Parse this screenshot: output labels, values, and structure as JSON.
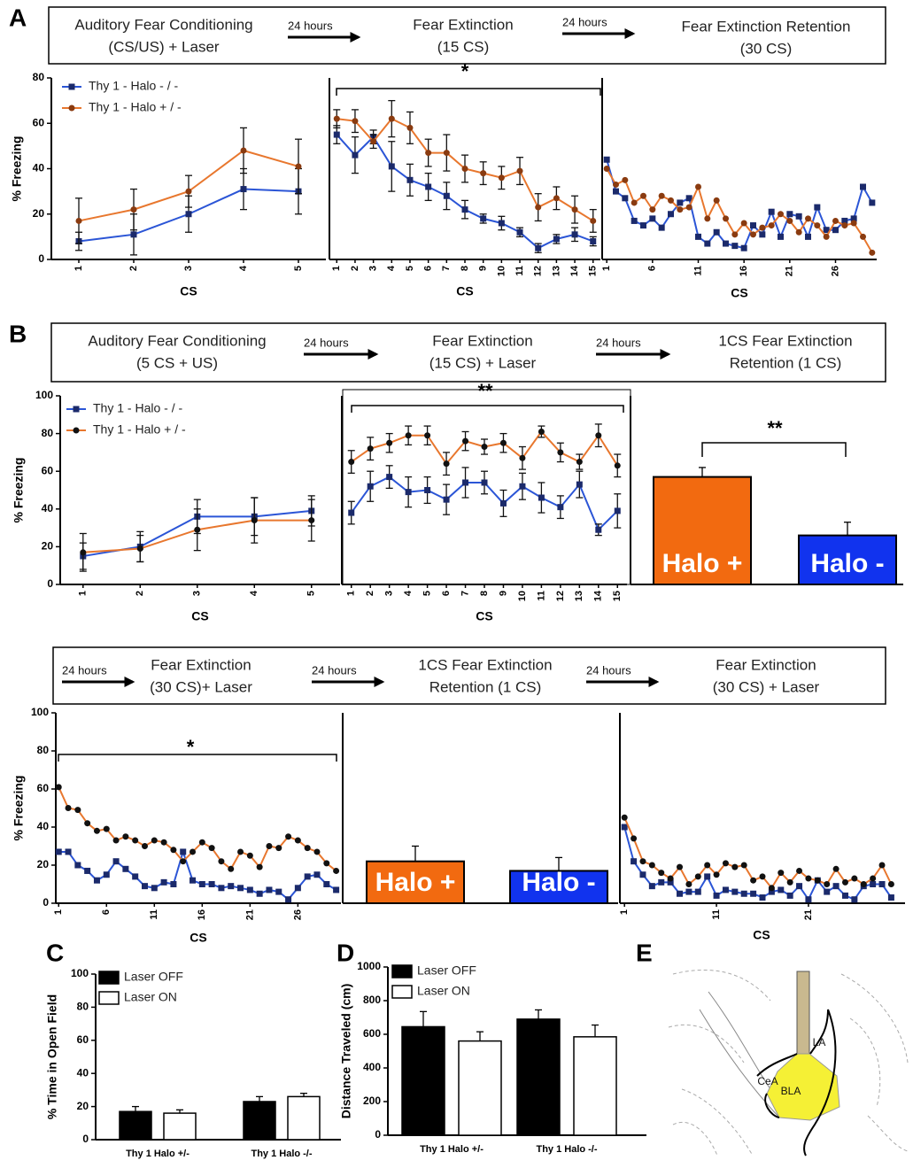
{
  "panel_letters": [
    "A",
    "B",
    "C",
    "D",
    "E"
  ],
  "headers": [
    {
      "stages": [
        [
          "Auditory Fear Conditioning",
          "(CS/US) + Laser"
        ],
        [
          "Fear Extinction",
          "(15 CS)"
        ],
        [
          "Fear Extinction Retention",
          "(30 CS)"
        ]
      ],
      "arrows": [
        "24 hours",
        "24 hours"
      ]
    },
    {
      "stages": [
        [
          "Auditory Fear Conditioning",
          "(5 CS + US)"
        ],
        [
          "Fear Extinction",
          "(15 CS) + Laser"
        ],
        [
          "1CS Fear Extinction",
          "Retention (1 CS)"
        ]
      ],
      "arrows": [
        "24 hours",
        "24 hours"
      ]
    },
    {
      "stages": [
        [
          "Fear Extinction",
          "(30 CS)+ Laser"
        ],
        [
          "1CS Fear  Extinction",
          "Retention (1 CS)"
        ],
        [
          "Fear Extinction",
          "(30 CS) + Laser"
        ]
      ],
      "arrows": [
        "24 hours",
        "24 hours",
        "24 hours"
      ]
    }
  ],
  "diagram": {
    "labels": [
      "LA",
      "CeA",
      "BLA"
    ]
  },
  "chart_data": [
    {
      "type": "line",
      "xlabel": "CS",
      "ylabel": "% Freezing",
      "x": [
        1,
        2,
        3,
        4,
        5
      ],
      "xlim": [
        0.5,
        5.5
      ],
      "xticks": [
        1,
        2,
        3,
        4,
        5
      ],
      "ylim": [
        0,
        80
      ],
      "yticks": [
        0,
        20,
        40,
        60,
        80
      ],
      "series": [
        {
          "name": "Thy 1 - Halo - / -",
          "color": "#2b55d6",
          "marker": "square",
          "marker_color": "#1b2a6b",
          "values": [
            8,
            11,
            20,
            31,
            30
          ],
          "errors": [
            4,
            9,
            8,
            9,
            10
          ]
        },
        {
          "name": "Thy 1 - Halo + / -",
          "color": "#e8772e",
          "marker": "circle",
          "marker_color": "#8a3b10",
          "values": [
            17,
            22,
            30,
            48,
            41
          ],
          "errors": [
            10,
            9,
            7,
            10,
            12
          ]
        }
      ]
    },
    {
      "type": "line",
      "xlabel": "CS",
      "annotation": "*",
      "x": [
        1,
        2,
        3,
        4,
        5,
        6,
        7,
        8,
        9,
        10,
        11,
        12,
        13,
        14,
        15
      ],
      "xlim": [
        0.6,
        15.4
      ],
      "xticks": [
        1,
        2,
        3,
        4,
        5,
        6,
        7,
        8,
        9,
        10,
        11,
        12,
        13,
        14,
        15
      ],
      "ylim": [
        0,
        80
      ],
      "series": [
        {
          "color": "#2b55d6",
          "marker": "square",
          "marker_color": "#1b2a6b",
          "values": [
            55,
            46,
            54,
            41,
            35,
            32,
            28,
            22,
            18,
            16,
            12,
            5,
            9,
            11,
            8
          ],
          "errors": [
            4,
            8,
            3,
            11,
            7,
            6,
            6,
            4,
            2,
            3,
            2,
            2,
            2,
            3,
            2
          ]
        },
        {
          "color": "#e8772e",
          "marker": "circle",
          "marker_color": "#8a3b10",
          "values": [
            62,
            61,
            52,
            62,
            58,
            47,
            47,
            40,
            38,
            36,
            39,
            23,
            27,
            22,
            17
          ],
          "errors": [
            4,
            5,
            3,
            8,
            7,
            6,
            8,
            6,
            5,
            5,
            6,
            6,
            5,
            6,
            5
          ]
        }
      ]
    },
    {
      "type": "line",
      "xlabel": "CS",
      "x": [
        1,
        2,
        3,
        4,
        5,
        6,
        7,
        8,
        9,
        10,
        11,
        12,
        13,
        14,
        15,
        16,
        17,
        18,
        19,
        20,
        21,
        22,
        23,
        24,
        25,
        26,
        27,
        28,
        29,
        30
      ],
      "xlim": [
        0.5,
        30.5
      ],
      "xticks": [
        1,
        6,
        11,
        16,
        21,
        26
      ],
      "ylim": [
        0,
        80
      ],
      "series": [
        {
          "color": "#2b55d6",
          "marker": "square",
          "marker_color": "#1b2a6b",
          "values": [
            44,
            30,
            27,
            17,
            15,
            18,
            14,
            20,
            25,
            27,
            10,
            7,
            12,
            7,
            6,
            5,
            15,
            11,
            21,
            10,
            20,
            19,
            10,
            23,
            13,
            13,
            17,
            18,
            32,
            25
          ]
        },
        {
          "color": "#e8772e",
          "marker": "circle",
          "marker_color": "#8a3b10",
          "values": [
            40,
            33,
            35,
            25,
            28,
            22,
            28,
            26,
            22,
            23,
            32,
            18,
            26,
            18,
            11,
            16,
            11,
            14,
            15,
            20,
            17,
            12,
            18,
            15,
            10,
            17,
            15,
            16,
            10,
            3
          ]
        }
      ]
    },
    {
      "type": "line",
      "xlabel": "CS",
      "ylabel": "% Freezing",
      "x": [
        1,
        2,
        3,
        4,
        5
      ],
      "xlim": [
        0.6,
        5.5
      ],
      "xticks": [
        1,
        2,
        3,
        4,
        5
      ],
      "ylim": [
        0,
        100
      ],
      "yticks": [
        0,
        20,
        40,
        60,
        80,
        100
      ],
      "series": [
        {
          "name": "Thy 1 - Halo - / -",
          "color": "#2b55d6",
          "marker": "square",
          "marker_color": "#1b2a6b",
          "values": [
            15,
            20,
            36,
            36,
            39
          ],
          "errors": [
            7,
            8,
            9,
            10,
            8
          ]
        },
        {
          "name": "Thy 1 - Halo + / -",
          "color": "#e8772e",
          "marker": "circle",
          "marker_color": "#111111",
          "values": [
            17,
            19,
            29,
            34,
            34
          ],
          "errors": [
            10,
            7,
            11,
            12,
            11
          ]
        }
      ]
    },
    {
      "type": "line",
      "xlabel": "CS",
      "annotation": "**",
      "x": [
        1,
        2,
        3,
        4,
        5,
        6,
        7,
        8,
        9,
        10,
        11,
        12,
        13,
        14,
        15
      ],
      "xlim": [
        0.5,
        15.5
      ],
      "xticks": [
        1,
        2,
        3,
        4,
        5,
        6,
        7,
        8,
        9,
        10,
        11,
        12,
        13,
        14,
        15
      ],
      "ylim": [
        0,
        100
      ],
      "series": [
        {
          "color": "#2b55d6",
          "marker": "square",
          "marker_color": "#1b2a6b",
          "values": [
            38,
            52,
            57,
            49,
            50,
            45,
            54,
            54,
            43,
            52,
            46,
            41,
            53,
            29,
            39
          ],
          "errors": [
            6,
            8,
            6,
            8,
            7,
            8,
            8,
            6,
            7,
            7,
            8,
            6,
            7,
            3,
            9
          ]
        },
        {
          "color": "#e8772e",
          "marker": "circle",
          "marker_color": "#111111",
          "values": [
            65,
            72,
            75,
            79,
            79,
            64,
            76,
            73,
            75,
            67,
            81,
            70,
            65,
            79,
            63
          ],
          "errors": [
            6,
            6,
            5,
            5,
            5,
            6,
            5,
            4,
            5,
            6,
            3,
            5,
            4,
            6,
            6
          ]
        }
      ]
    },
    {
      "type": "bar",
      "annotation": "**",
      "categories": [
        "Halo +",
        "Halo -"
      ],
      "values": [
        57,
        26
      ],
      "errors": [
        5,
        7
      ],
      "colors": [
        "#f26a10",
        "#1133ee"
      ],
      "ylim": [
        0,
        100
      ]
    },
    {
      "type": "line",
      "xlabel": "CS",
      "ylabel": "% Freezing",
      "annotation": "*",
      "x": [
        1,
        2,
        3,
        4,
        5,
        6,
        7,
        8,
        9,
        10,
        11,
        12,
        13,
        14,
        15,
        16,
        17,
        18,
        19,
        20,
        21,
        22,
        23,
        24,
        25,
        26,
        27,
        28,
        29,
        30
      ],
      "xlim": [
        0.7,
        30.5
      ],
      "xticks": [
        1,
        6,
        11,
        16,
        21,
        26
      ],
      "ylim": [
        0,
        100
      ],
      "yticks": [
        0,
        20,
        40,
        60,
        80,
        100
      ],
      "series": [
        {
          "color": "#2b55d6",
          "marker": "square",
          "marker_color": "#1b2a6b",
          "values": [
            27,
            27,
            20,
            17,
            12,
            15,
            22,
            18,
            14,
            9,
            8,
            11,
            10,
            27,
            12,
            10,
            10,
            8,
            9,
            8,
            7,
            5,
            7,
            6,
            2,
            8,
            14,
            15,
            10,
            7
          ]
        },
        {
          "color": "#e8772e",
          "marker": "circle",
          "marker_color": "#111111",
          "values": [
            61,
            50,
            49,
            42,
            38,
            39,
            33,
            35,
            33,
            30,
            33,
            32,
            28,
            22,
            27,
            32,
            29,
            22,
            18,
            27,
            25,
            19,
            30,
            29,
            35,
            33,
            29,
            27,
            21,
            17
          ]
        }
      ]
    },
    {
      "type": "bar",
      "categories": [
        "Halo +",
        "Halo -"
      ],
      "values": [
        22,
        17
      ],
      "errors": [
        8,
        7
      ],
      "colors": [
        "#f26a10",
        "#1133ee"
      ],
      "ylim": [
        0,
        100
      ]
    },
    {
      "type": "line",
      "xlabel": "CS",
      "x": [
        1,
        2,
        3,
        4,
        5,
        6,
        7,
        8,
        9,
        10,
        11,
        12,
        13,
        14,
        15,
        16,
        17,
        18,
        19,
        20,
        21,
        22,
        23,
        24,
        25,
        26,
        27,
        28,
        29,
        30
      ],
      "xlim": [
        0.5,
        31.5
      ],
      "xticks": [
        1,
        11,
        21
      ],
      "ylim": [
        0,
        100
      ],
      "series": [
        {
          "color": "#2b55d6",
          "marker": "square",
          "marker_color": "#1b2a6b",
          "values": [
            40,
            22,
            15,
            9,
            11,
            11,
            5,
            6,
            6,
            14,
            4,
            7,
            6,
            5,
            5,
            3,
            6,
            7,
            4,
            9,
            2,
            12,
            6,
            9,
            4,
            2,
            9,
            10,
            10,
            3
          ]
        },
        {
          "color": "#e8772e",
          "marker": "circle",
          "marker_color": "#111111",
          "values": [
            45,
            34,
            22,
            20,
            16,
            13,
            19,
            10,
            14,
            20,
            15,
            21,
            19,
            20,
            12,
            14,
            8,
            16,
            11,
            17,
            13,
            12,
            10,
            18,
            11,
            13,
            10,
            13,
            20,
            10
          ]
        }
      ]
    },
    {
      "type": "grouped_bar",
      "ylabel": "% Time in Open Field",
      "categories": [
        "Thy 1 Halo +/-",
        "Thy 1 Halo -/-"
      ],
      "ylim": [
        0,
        100
      ],
      "yticks": [
        0,
        20,
        40,
        60,
        80,
        100
      ],
      "series": [
        {
          "name": "Laser OFF",
          "color": "#000000",
          "values": [
            17,
            23
          ],
          "errors": [
            3,
            3
          ]
        },
        {
          "name": "Laser ON",
          "color": "#ffffff",
          "values": [
            16,
            26
          ],
          "errors": [
            2,
            2
          ]
        }
      ]
    },
    {
      "type": "grouped_bar",
      "ylabel": "Distance Traveled (cm)",
      "categories": [
        "Thy 1 Halo +/-",
        "Thy 1 Halo -/-"
      ],
      "ylim": [
        0,
        1000
      ],
      "yticks": [
        0,
        200,
        400,
        600,
        800,
        1000
      ],
      "series": [
        {
          "name": "Laser OFF",
          "color": "#000000",
          "values": [
            645,
            690
          ],
          "errors": [
            90,
            55
          ]
        },
        {
          "name": "Laser ON",
          "color": "#ffffff",
          "values": [
            560,
            585
          ],
          "errors": [
            55,
            70
          ]
        }
      ]
    }
  ]
}
